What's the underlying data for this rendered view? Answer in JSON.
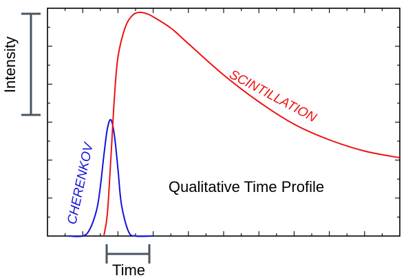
{
  "chart_data": {
    "type": "line",
    "title": "Qualitative Time Profile",
    "xlabel": "Time",
    "ylabel": "Intensity",
    "x_ticks_labeled": false,
    "y_ticks_labeled": false,
    "xlim": [
      0,
      10
    ],
    "ylim": [
      0,
      1
    ],
    "grid": false,
    "legend": "none",
    "series": [
      {
        "name": "CHERENKOV",
        "color": "#1111dd",
        "shape": "narrow gaussian pulse",
        "x": [
          0.6,
          1.0,
          1.2,
          1.4,
          1.5,
          1.6,
          1.7,
          1.8,
          1.9,
          2.0,
          2.1,
          2.3,
          2.5,
          3.0
        ],
        "y": [
          0.0,
          0.0,
          0.03,
          0.12,
          0.22,
          0.36,
          0.48,
          0.52,
          0.45,
          0.3,
          0.14,
          0.02,
          0.0,
          0.0
        ]
      },
      {
        "name": "SCINTILLATION",
        "color": "#ee1111",
        "shape": "fast rise, slow exponential decay",
        "x": [
          1.6,
          1.7,
          1.8,
          1.9,
          2.0,
          2.2,
          2.4,
          2.6,
          2.8,
          3.0,
          3.5,
          4.0,
          5.0,
          6.0,
          7.0,
          8.0,
          9.0,
          10.0
        ],
        "y": [
          0.0,
          0.1,
          0.35,
          0.62,
          0.8,
          0.93,
          0.985,
          1.0,
          0.995,
          0.98,
          0.93,
          0.86,
          0.72,
          0.6,
          0.5,
          0.43,
          0.38,
          0.35
        ]
      }
    ],
    "annotations": {
      "series_label_1": "CHERENKOV",
      "series_label_2": "SCINTILLATION"
    }
  }
}
